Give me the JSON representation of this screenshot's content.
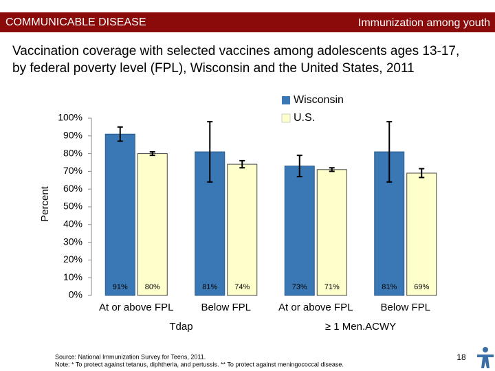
{
  "slide": {
    "header_left": "COMMUNICABLE DISEASE",
    "header_right": "Immunization among youth",
    "title_lines": [
      "Vaccination coverage with selected vaccines among adolescents ages 13-17,",
      "by federal poverty level (FPL), Wisconsin and the United States, 2011"
    ],
    "source": "Source: National Immunization Survey for Teens, 2011.",
    "note": "Note: * To protect against tetanus, diphtheria, and pertussis. ** To protect against meningococcal disease.",
    "page": "18"
  },
  "chart_data": {
    "type": "bar",
    "y_label": "Percent",
    "categories": [
      "At or above FPL",
      "Below FPL",
      "At or above FPL",
      "Below FPL"
    ],
    "group_labels": [
      "Tdap",
      "≥ 1 Men.ACWY"
    ],
    "series": [
      {
        "name": "Wisconsin",
        "color": "#3a78b5",
        "values": [
          91,
          81,
          73,
          81
        ],
        "errors": [
          4,
          17,
          6,
          17
        ],
        "value_labels": [
          "91%",
          "81%",
          "73%",
          "81%"
        ]
      },
      {
        "name": "U.S.",
        "color": "#ffffcc",
        "values": [
          80,
          74,
          71,
          69
        ],
        "errors": [
          1,
          2,
          1,
          2.5
        ],
        "value_labels": [
          "80%",
          "74%",
          "71%",
          "69%"
        ]
      }
    ],
    "ylim": [
      0,
      100
    ],
    "yticks": [
      {
        "value": 0,
        "label": "0%"
      },
      {
        "value": 10,
        "label": "10%"
      },
      {
        "value": 20,
        "label": "20%"
      },
      {
        "value": 30,
        "label": "30%"
      },
      {
        "value": 40,
        "label": "40%"
      },
      {
        "value": 50,
        "label": "50%"
      },
      {
        "value": 60,
        "label": "60%"
      },
      {
        "value": 70,
        "label": "70%"
      },
      {
        "value": 80,
        "label": "80%"
      },
      {
        "value": 90,
        "label": "90%"
      },
      {
        "value": 100,
        "label": "100%"
      }
    ],
    "legend": "top-right",
    "error_bars": true
  }
}
